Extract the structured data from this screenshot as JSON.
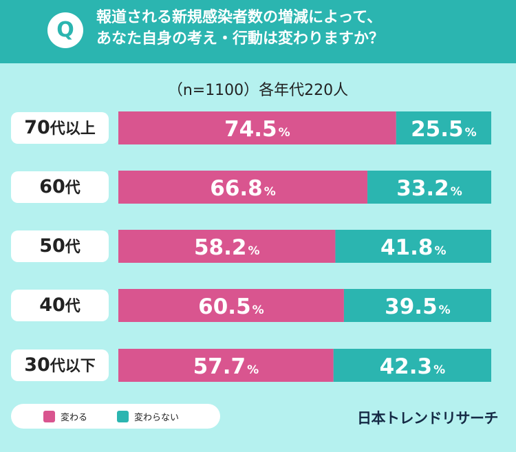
{
  "header": {
    "badge": "Q",
    "question_line1": "報道される新規感染者数の増減によって、",
    "question_line2": "あなた自身の考え・行動は変わりますか？"
  },
  "sample_note": "（n=1100）各年代220人",
  "colors": {
    "changes": "#d9558f",
    "no_change": "#2bb5b0",
    "header": "#2bb5b0",
    "background": "#b5f1ef"
  },
  "chart_data": {
    "type": "bar",
    "orientation": "horizontal-stacked-100",
    "categories": [
      "70代以上",
      "60代",
      "50代",
      "40代",
      "30代以下"
    ],
    "category_parts": [
      {
        "num": "70",
        "suffix": "代以上"
      },
      {
        "num": "60",
        "suffix": "代"
      },
      {
        "num": "50",
        "suffix": "代"
      },
      {
        "num": "40",
        "suffix": "代"
      },
      {
        "num": "30",
        "suffix": "代以下"
      }
    ],
    "series": [
      {
        "name": "変わる",
        "values": [
          74.5,
          66.8,
          58.2,
          60.5,
          57.7
        ]
      },
      {
        "name": "変わらない",
        "values": [
          25.5,
          33.2,
          41.8,
          39.5,
          42.3
        ]
      }
    ],
    "unit": "%",
    "xlim": [
      0,
      100
    ],
    "legend_position": "bottom-left",
    "grid": false
  },
  "legend": {
    "changes": "変わる",
    "no_change": "変わらない"
  },
  "brand": "日本トレンドリサーチ"
}
